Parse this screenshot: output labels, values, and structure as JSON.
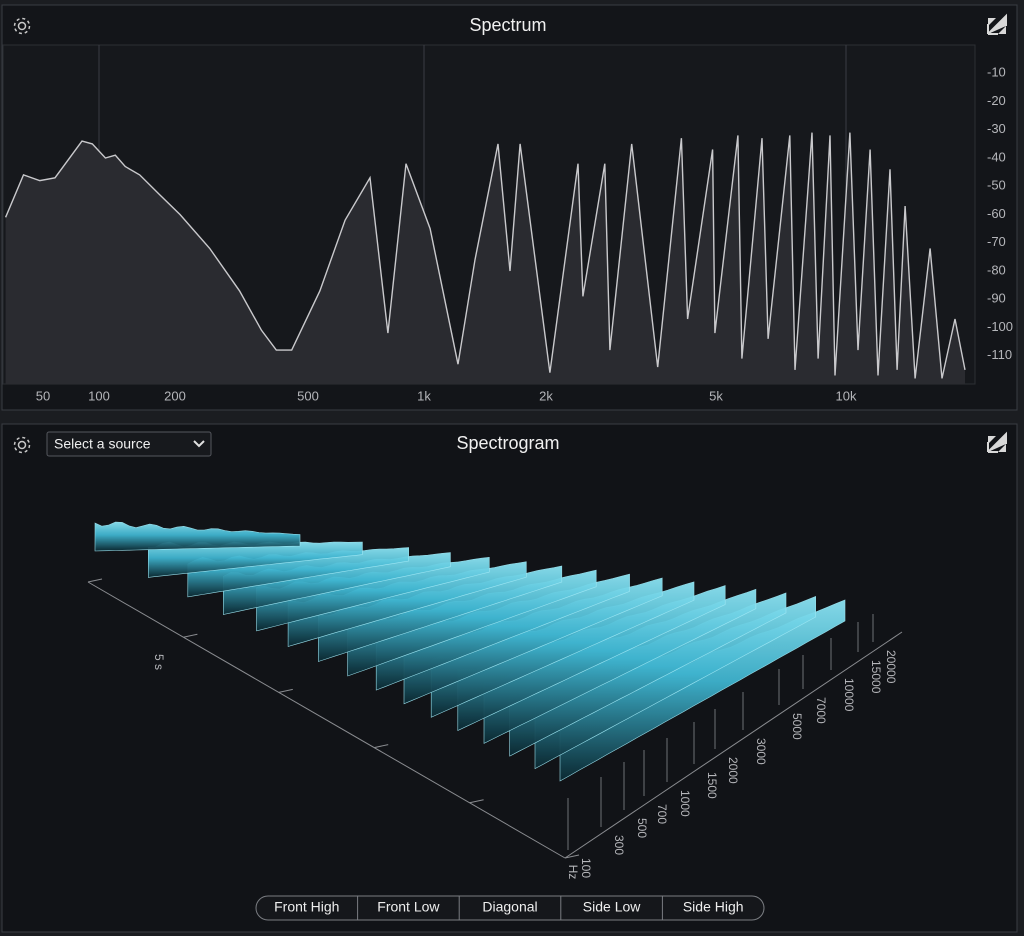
{
  "chart_data": {
    "type": "area",
    "title": "Spectrum",
    "x": [
      31,
      39,
      48,
      58,
      81,
      92,
      106,
      116,
      127,
      145,
      174,
      207,
      254,
      312,
      363,
      402,
      447,
      537,
      624,
      724,
      806,
      898,
      1035,
      1213,
      1336,
      1523,
      1630,
      1726,
      2043,
      2376,
      2440,
      2746,
      2822,
      3175,
      3652,
      4150,
      4290,
      4910,
      4970,
      5620,
      5740,
      6390,
      6600,
      7410,
      7620,
      8340,
      8620,
      9180,
      9430,
      10180,
      10560,
      11160,
      11570,
      12220,
      12620,
      13090,
      13700,
      14670,
      15490,
      16430,
      17200
    ],
    "values": [
      -61,
      -46,
      -48,
      -47,
      -34,
      -35,
      -40,
      -39,
      -43,
      -46,
      -53,
      -60,
      -72,
      -87,
      -101,
      -108,
      -108,
      -87,
      -62,
      -47,
      -102,
      -42,
      -65,
      -113,
      -76,
      -35,
      -80,
      -35,
      -116,
      -42,
      -89,
      -42,
      -108,
      -35,
      -114,
      -33,
      -97,
      -37,
      -102,
      -32,
      -111,
      -33,
      -104,
      -32,
      -115,
      -31,
      -111,
      -32,
      -117,
      -31,
      -108,
      -37,
      -117,
      -44,
      -115,
      -57,
      -118,
      -72,
      -118,
      -97,
      -115
    ],
    "color": "#c9c9cc",
    "fill": "#2a2b30",
    "xlim": [
      30,
      18000
    ],
    "xticks": [
      50,
      100,
      200,
      500,
      {
        "value": 1000,
        "label": "1k"
      },
      {
        "value": 2000,
        "label": "2k"
      },
      {
        "value": 5000,
        "label": "5k"
      },
      {
        "value": 10000,
        "label": "10k"
      }
    ],
    "log_x": true,
    "ylim": [
      -120,
      0
    ],
    "yticks": [
      -10,
      -20,
      -30,
      -40,
      -50,
      -60,
      -70,
      -80,
      -90,
      -100,
      -110
    ]
  },
  "spectrogram": {
    "title": "Spectrogram",
    "source_select": "Select a source",
    "freq_labels": [
      100,
      300,
      500,
      700,
      1000,
      1500,
      2000,
      3000,
      5000,
      7000,
      10000,
      15000,
      20000
    ],
    "freq_unit": "Hz",
    "time_label": "5 s",
    "view_buttons": [
      "Front High",
      "Front Low",
      "Diagonal",
      "Side Low",
      "Side High"
    ]
  }
}
